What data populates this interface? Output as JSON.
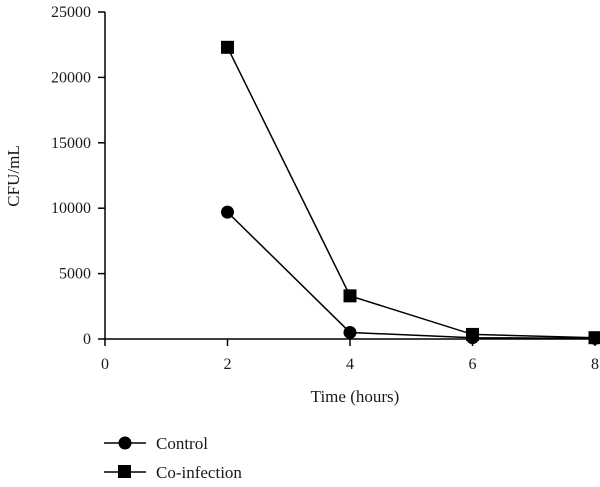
{
  "chart_data": {
    "type": "line",
    "title": "",
    "xlabel": "Time (hours)",
    "ylabel": "CFU/mL",
    "xlim": [
      0,
      8
    ],
    "ylim": [
      0,
      25000
    ],
    "x_ticks": [
      "0",
      "2",
      "4",
      "6",
      "8"
    ],
    "y_ticks": [
      "0",
      "5000",
      "10000",
      "15000",
      "20000",
      "25000"
    ],
    "grid": false,
    "legend_placement": "bottom-left",
    "series": [
      {
        "name": "Control",
        "marker": "circle",
        "color": "#000000",
        "x": [
          2,
          4,
          6,
          8
        ],
        "y": [
          9700,
          500,
          100,
          50
        ]
      },
      {
        "name": "Co-infection",
        "marker": "square",
        "color": "#000000",
        "x": [
          2,
          4,
          6,
          8
        ],
        "y": [
          22300,
          3300,
          350,
          100
        ]
      }
    ]
  }
}
